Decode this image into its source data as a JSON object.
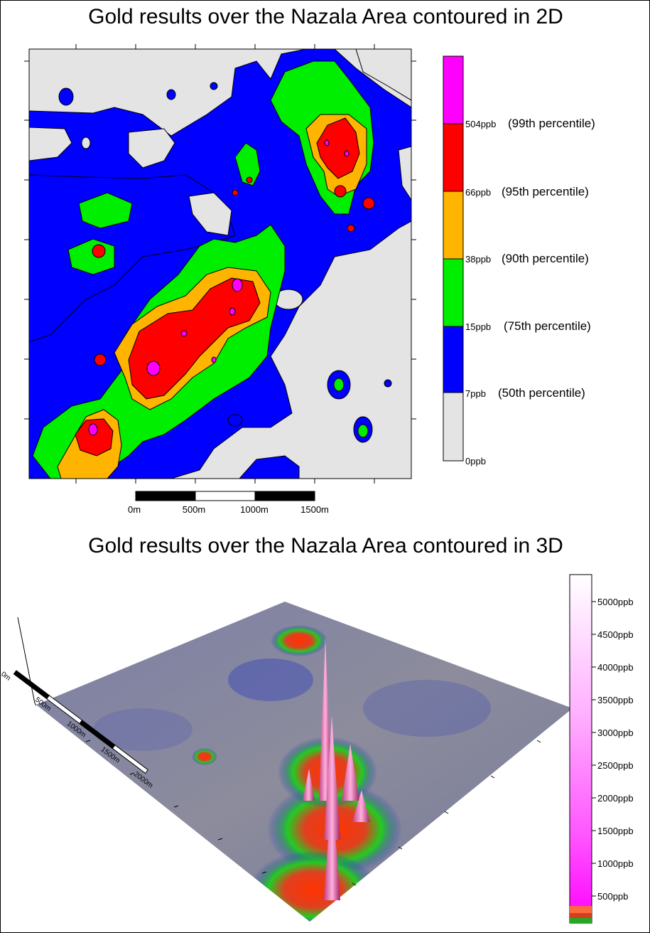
{
  "map2d": {
    "title": "Gold results over the Nazala Area contoured in 2D",
    "legend": [
      {
        "value": "504ppb",
        "percentile": "(99th percentile)",
        "color": "#ff00ff"
      },
      {
        "value": "66ppb",
        "percentile": "(95th percentile)",
        "color": "#ff0000"
      },
      {
        "value": "38ppb",
        "percentile": "(90th percentile)",
        "color": "#ffb400"
      },
      {
        "value": "15ppb",
        "percentile": "(75th percentile)",
        "color": "#00ee00"
      },
      {
        "value": "7ppb",
        "percentile": "(50th percentile)",
        "color": "#0000ff"
      },
      {
        "value": "0ppb",
        "percentile": "",
        "color": "#e4e4e4"
      }
    ],
    "scalebar": [
      "0m",
      "500m",
      "1000m",
      "1500m"
    ]
  },
  "map3d": {
    "title": "Gold results over the Nazala Area contoured in 3D",
    "scalebar": [
      "0m",
      "500m",
      "1000m",
      "1500m",
      "2000m"
    ],
    "colorbar": [
      "5000ppb",
      "4500ppb",
      "4000ppb",
      "3500ppb",
      "3000ppb",
      "2500ppb",
      "2000ppb",
      "1500ppb",
      "1000ppb",
      "500ppb"
    ]
  }
}
